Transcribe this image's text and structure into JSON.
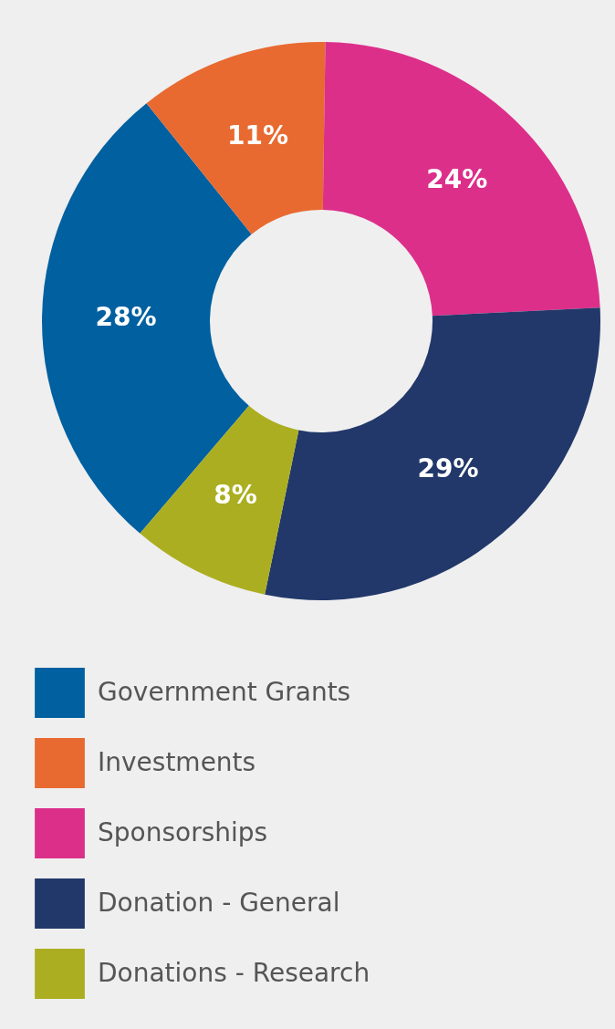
{
  "chart_data": {
    "type": "donut",
    "categories": [
      "Government Grants",
      "Investments",
      "Sponsorships",
      "Donation - General",
      "Donations - Research"
    ],
    "values": [
      28,
      11,
      24,
      29,
      8
    ],
    "colors": [
      "#0060a0",
      "#e86a30",
      "#dc2f8a",
      "#22386a",
      "#abae20"
    ],
    "value_labels": [
      "28%",
      "11%",
      "24%",
      "29%",
      "8%"
    ],
    "legend": "bottom"
  }
}
